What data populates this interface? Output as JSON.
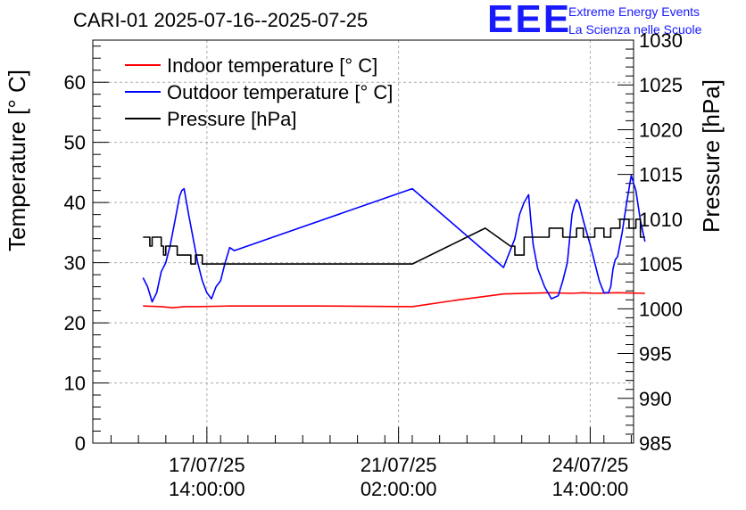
{
  "header": {
    "title": "CARI-01 2025-07-16--2025-07-25",
    "logo": "EEE",
    "brand_line1": "Extreme Energy Events",
    "brand_line2": "La Scienza nelle Scuole"
  },
  "chart_data": {
    "type": "line",
    "title": "CARI-01 2025-07-16--2025-07-25",
    "ylabel": "Temperature [° C]",
    "y2label": "Pressure [hPa]",
    "ylim": [
      0,
      67
    ],
    "y2lim": [
      985,
      1030
    ],
    "yticks": [
      "0",
      "10",
      "20",
      "30",
      "40",
      "50",
      "60"
    ],
    "y2ticks": [
      "985",
      "990",
      "995",
      "1000",
      "1005",
      "1010",
      "1015",
      "1020",
      "1025",
      "1030"
    ],
    "xrange_hours": [
      0,
      237
    ],
    "xticks": [
      {
        "hour": 50,
        "line1": "17/07/25",
        "line2": "14:00:00"
      },
      {
        "hour": 134,
        "line1": "21/07/25",
        "line2": "02:00:00"
      },
      {
        "hour": 218,
        "line1": "24/07/25",
        "line2": "14:00:00"
      }
    ],
    "grid": true,
    "legend_position": "top-left",
    "legend": [
      "Indoor temperature [° C]",
      "Outdoor temperature [° C]",
      "Pressure [hPa]"
    ],
    "colors": {
      "indoor": "#ff0000",
      "outdoor": "#0000ff",
      "pressure": "#000000"
    },
    "series": [
      {
        "name": "Indoor temperature [° C]",
        "axis": "left",
        "x": [
          22,
          30,
          35,
          40,
          45,
          60,
          100,
          140,
          160,
          180,
          200,
          210,
          215,
          220,
          230,
          242
        ],
        "values": [
          22.8,
          22.7,
          22.5,
          22.7,
          22.7,
          22.8,
          22.8,
          22.7,
          23.8,
          24.8,
          25.0,
          24.9,
          25.0,
          24.9,
          25.0,
          24.9
        ]
      },
      {
        "name": "Outdoor temperature [° C]",
        "axis": "left",
        "x": [
          22,
          24,
          26,
          28,
          30,
          32,
          34,
          36,
          38,
          39,
          40,
          42,
          44,
          46,
          48,
          50,
          52,
          54,
          56,
          58,
          60,
          62,
          140,
          180,
          185,
          187,
          189,
          191,
          192,
          193,
          195,
          198,
          201,
          204,
          206,
          208,
          209,
          210,
          211,
          212,
          213,
          215,
          218,
          220,
          222,
          224,
          226,
          227,
          228,
          229,
          230,
          232,
          234,
          236,
          238,
          240,
          242
        ],
        "values": [
          27.5,
          26,
          23.5,
          25,
          28.5,
          30,
          33,
          37,
          41,
          42,
          42.3,
          38,
          34,
          30,
          27,
          25,
          24,
          26,
          27,
          30,
          32.5,
          32,
          42.3,
          29.2,
          34,
          38,
          40,
          41.3,
          37,
          33,
          29,
          26,
          24,
          24.5,
          27,
          30,
          34,
          38,
          39.5,
          40.5,
          40,
          37,
          33,
          30,
          27,
          25,
          25,
          26,
          29,
          30.5,
          31,
          35,
          40,
          44.5,
          42,
          37,
          33.5
        ]
      },
      {
        "name": "Pressure [hPa]",
        "axis": "right",
        "x": [
          22,
          25,
          25,
          26,
          26,
          30,
          30,
          31,
          31,
          32,
          32,
          37,
          37,
          43,
          43,
          45,
          45,
          48,
          48,
          140,
          172,
          183,
          185,
          185,
          189,
          189,
          200,
          200,
          206,
          206,
          212,
          212,
          215,
          215,
          220,
          220,
          224,
          224,
          227,
          227,
          231,
          231,
          235,
          235,
          238,
          238,
          240,
          240,
          242
        ],
        "values": [
          1008,
          1008,
          1007,
          1007,
          1008,
          1008,
          1007,
          1007,
          1006,
          1006,
          1007,
          1007,
          1006,
          1006,
          1005,
          1005,
          1006,
          1006,
          1005,
          1005,
          1009,
          1007,
          1007,
          1006,
          1006,
          1008,
          1008,
          1009,
          1009,
          1008,
          1008,
          1009,
          1009,
          1008,
          1008,
          1009,
          1009,
          1008,
          1008,
          1009,
          1009,
          1010,
          1010,
          1009,
          1009,
          1010,
          1010,
          1008,
          1008
        ]
      }
    ]
  }
}
